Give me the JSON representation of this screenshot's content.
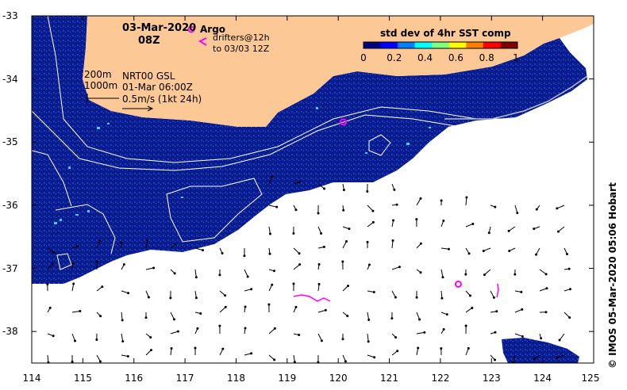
{
  "title": {
    "date": "03-Mar-2020",
    "time": "08Z"
  },
  "legend": {
    "argo_label": "Argo",
    "drifters_line1": "drifters@12h",
    "drifters_line2": "to 03/03 12Z",
    "isobath_1": "200m",
    "isobath_2": "1000m",
    "product": "NRT00 GSL",
    "product_time": "01-Mar 06:00Z",
    "vector_scale": "0.5m/s (1kt 24h)"
  },
  "colorbar": {
    "title": "std dev of 4hr SST comp",
    "ticks": [
      "0",
      "0.2",
      "0.4",
      "0.6",
      "0.8",
      "1"
    ],
    "colors": [
      "#00007f",
      "#0000ff",
      "#007fff",
      "#00ffff",
      "#7fff7f",
      "#ffff00",
      "#ff7f00",
      "#ff0000",
      "#7f0000"
    ]
  },
  "axes": {
    "lon_ticks": [
      "114",
      "115",
      "116",
      "117",
      "118",
      "119",
      "120",
      "121",
      "122",
      "123",
      "124",
      "125"
    ],
    "lat_ticks": [
      "-33",
      "-34",
      "-35",
      "-36",
      "-37",
      "-38"
    ],
    "lon_range": [
      114,
      125
    ],
    "lat_range": [
      -38.5,
      -33
    ]
  },
  "colors": {
    "land": "#fcc896",
    "ocean_field": "#0a1c8c",
    "argo": "#ff00ff",
    "contour": "#ffffff"
  },
  "argo_floats": [
    {
      "lon": 120.1,
      "lat": -34.68
    },
    {
      "lon": 122.35,
      "lat": -37.25
    }
  ],
  "credit": "© IMOS 05-Mar-2020 05:06 Hobart"
}
